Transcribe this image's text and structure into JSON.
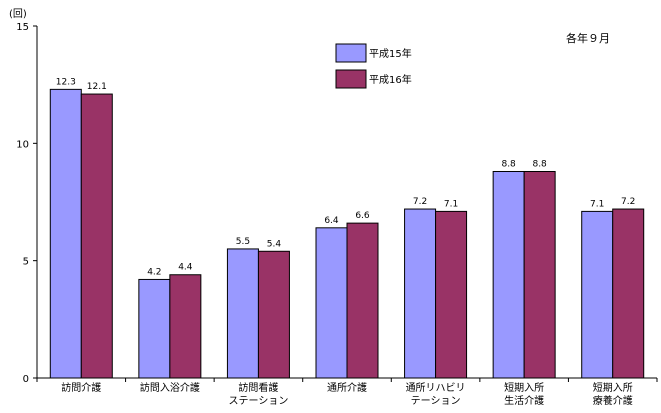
{
  "chart_data": {
    "type": "bar",
    "y_unit": "(回)",
    "note": "各年９月",
    "ylim": [
      0,
      15
    ],
    "yticks": [
      0,
      5,
      10,
      15
    ],
    "grid": false,
    "legend_position": "top-center",
    "categories": [
      [
        "訪問介護"
      ],
      [
        "訪問入浴介護"
      ],
      [
        "訪問看護",
        "ステーション"
      ],
      [
        "通所介護"
      ],
      [
        "通所リハビリ",
        "テーション"
      ],
      [
        "短期入所",
        "生活介護"
      ],
      [
        "短期入所",
        "療養介護"
      ]
    ],
    "series": [
      {
        "name": "平成15年",
        "color": "#9999ff",
        "values": [
          12.3,
          4.2,
          5.5,
          6.4,
          7.2,
          8.8,
          7.1
        ],
        "labels": [
          "12.3",
          "4.2",
          "5.5",
          "6.4",
          "7.2",
          "8.8",
          "7.1"
        ]
      },
      {
        "name": "平成16年",
        "color": "#993366",
        "values": [
          12.1,
          4.4,
          5.4,
          6.6,
          7.1,
          8.8,
          7.2
        ],
        "labels": [
          "12.1",
          "4.4",
          "5.4",
          "6.6",
          "7.1",
          "8.8",
          "7.2"
        ]
      }
    ]
  }
}
